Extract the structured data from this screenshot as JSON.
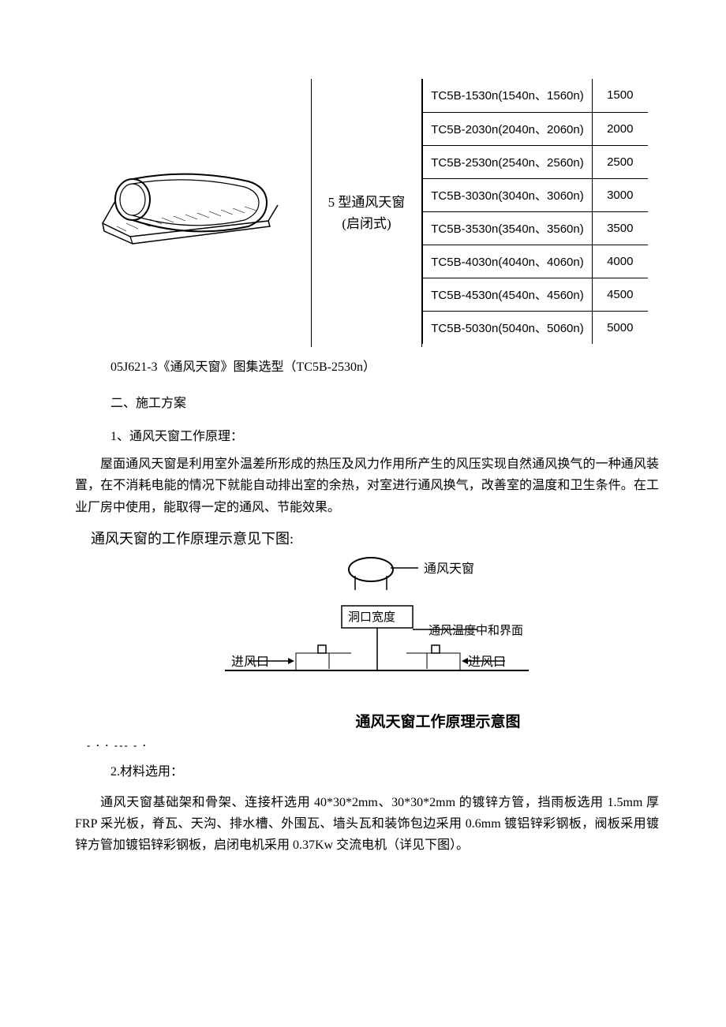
{
  "table": {
    "type_label_line1": "5 型通风天窗",
    "type_label_line2": "(启闭式)",
    "rows": [
      {
        "code": "TC5B-1530n(1540n、1560n)",
        "value": "1500"
      },
      {
        "code": "TC5B-2030n(2040n、2060n)",
        "value": "2000"
      },
      {
        "code": "TC5B-2530n(2540n、2560n)",
        "value": "2500"
      },
      {
        "code": "TC5B-3030n(3040n、3060n)",
        "value": "3000"
      },
      {
        "code": "TC5B-3530n(3540n、3560n)",
        "value": "3500"
      },
      {
        "code": "TC5B-4030n(4040n、4060n)",
        "value": "4000"
      },
      {
        "code": "TC5B-4530n(4540n、4560n)",
        "value": "4500"
      },
      {
        "code": "TC5B-5030n(5040n、5060n)",
        "value": "5000"
      }
    ]
  },
  "text": {
    "caption": "05J621-3《通风天窗》图集选型（TC5B-2530n）",
    "sec2": "二、施工方案",
    "sec2_1": "1、通风天窗工作原理：",
    "para1": "屋面通风天窗是利用室外温差所形成的热压及风力作用所产生的风压实现自然通风换气的一种通风装置，在不消耗电能的情况下就能自动排出室的余热，对室进行通风换气，改善室的温度和卫生条件。在工业厂房中使用，能取得一定的通风、节能效果。",
    "diagram_title": "通风天窗的工作原理示意见下图:",
    "diagram_labels": {
      "top": "通风天窗",
      "center": "洞口宽度",
      "right": "通风温度中和界面",
      "inlet": "进风口"
    },
    "diagram_caption": "通风天窗工作原理示意图",
    "sec2_2": "2.材料选用：",
    "para2": "通风天窗基础架和骨架、连接杆选用 40*30*2mm、30*30*2mm 的镀锌方管，挡雨板选用 1.5mm 厚 FRP 采光板，脊瓦、天沟、排水槽、外围瓦、墙头瓦和装饰包边采用 0.6mm 镀铝锌彩钢板，阀板采用镀锌方管加镀铝锌彩钢板，启闭电机采用 0.37Kw 交流电机（详见下图）。"
  },
  "style": {
    "text_color": "#000000",
    "bg_color": "#ffffff",
    "border_color": "#000000",
    "body_fontsize": 16,
    "table_fontsize": 15,
    "diagram_fontsize": 18
  }
}
